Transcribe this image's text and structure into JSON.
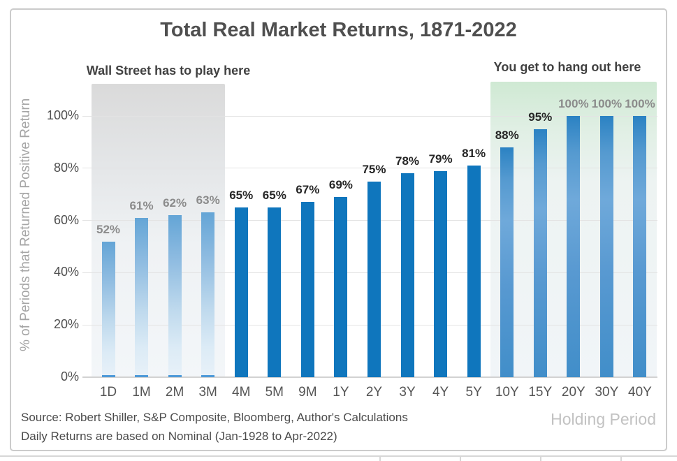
{
  "header": {
    "title": "Total Real Market Returns, 1871-2022"
  },
  "annotations": {
    "left": "Wall Street has to play here",
    "right": "You get to hang out here"
  },
  "chart_data": {
    "type": "bar",
    "title": "Total Real Market Returns, 1871-2022",
    "xlabel": "Holding Period",
    "ylabel": "% of Periods that Returned Positive Return",
    "ylim": [
      0,
      100
    ],
    "grid": true,
    "legend": "none",
    "yticks": [
      {
        "value": 0,
        "label": "0%"
      },
      {
        "value": 20,
        "label": "20%"
      },
      {
        "value": 40,
        "label": "40%"
      },
      {
        "value": 60,
        "label": "60%"
      },
      {
        "value": 80,
        "label": "80%"
      },
      {
        "value": 100,
        "label": "100%"
      }
    ],
    "categories": [
      "1D",
      "1M",
      "2M",
      "3M",
      "4M",
      "5M",
      "9M",
      "1Y",
      "2Y",
      "3Y",
      "4Y",
      "5Y",
      "10Y",
      "15Y",
      "20Y",
      "30Y",
      "40Y"
    ],
    "values": [
      52,
      61,
      62,
      63,
      65,
      65,
      67,
      69,
      75,
      78,
      79,
      81,
      88,
      95,
      100,
      100,
      100
    ],
    "value_labels": [
      "52%",
      "61%",
      "62%",
      "63%",
      "65%",
      "65%",
      "67%",
      "69%",
      "75%",
      "78%",
      "79%",
      "81%",
      "88%",
      "95%",
      "100%",
      "100%",
      "100%"
    ],
    "bar_styles": [
      "fade",
      "fade",
      "fade",
      "fade",
      "solid",
      "solid",
      "solid",
      "solid",
      "solid",
      "solid",
      "solid",
      "solid",
      "soft",
      "soft",
      "soft",
      "soft",
      "soft"
    ],
    "value_label_muted": [
      true,
      true,
      true,
      true,
      false,
      false,
      false,
      false,
      false,
      false,
      false,
      false,
      false,
      false,
      true,
      true,
      true
    ],
    "regions": [
      {
        "name": "wall-street-region",
        "label": "Wall Street has to play here",
        "from": "1D",
        "to": "3M",
        "fill": "gray-fade"
      },
      {
        "name": "hang-out-region",
        "label": "You get to hang out here",
        "from": "10Y",
        "to": "40Y",
        "fill": "green-fade"
      }
    ]
  },
  "footer": {
    "source_line1": "Source: Robert Shiller, S&P Composite, Bloomberg, Author's Calculations",
    "source_line2": "Daily Returns are based on Nominal (Jan-1928 to Apr-2022)",
    "axis_label": "Holding Period"
  },
  "colors": {
    "bar_solid": "#0f76bd",
    "bar_fade_top": "#64a5d6",
    "bar_fade_base_cap": "#4f9ad8",
    "bar_soft_top": "#2b82c3",
    "region_gray_top": "#dadada",
    "region_green_top": "#cfe9d3",
    "title_text": "#4f4f4f",
    "annotation_text": "#414141",
    "value_label_dark": "#262626",
    "value_label_muted": "#8b8b8b",
    "axis_tick_text": "#4f4f4f",
    "y_axis_title_text": "#a5a5a5",
    "source_text": "#4b4b4b",
    "holding_period_text": "#c2c2c2",
    "gridline": "#e3e3e3",
    "frame_border": "#cbcbcb"
  }
}
